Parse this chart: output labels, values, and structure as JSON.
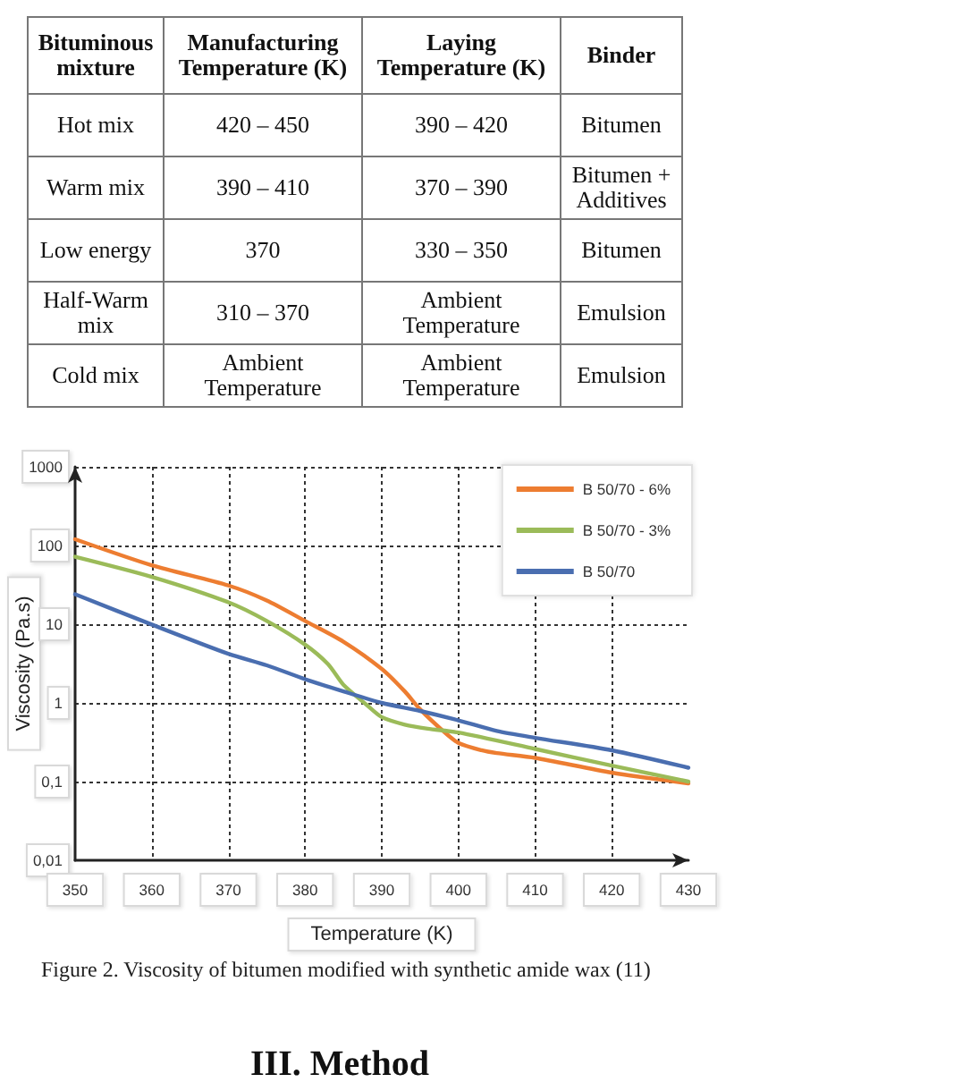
{
  "chart_data": [
    {
      "type": "other",
      "categories": [
        "Bituminous mixture",
        "Manufacturing Temperature (K)",
        "Laying Temperature (K)",
        "Binder"
      ],
      "annotations": [
        "Hot mix",
        "420 – 450",
        "390 – 420",
        "Bitumen",
        "Warm mix",
        "390 – 410",
        "370 – 390",
        "Bitumen + Additives",
        "Low energy",
        "370",
        "330 – 350",
        "Bitumen",
        "Half-Warm mix",
        "310 – 370",
        "Ambient Temperature",
        "Emulsion",
        "Cold mix",
        "Ambient Temperature",
        "Ambient Temperature",
        "Emulsion"
      ]
    },
    {
      "type": "line",
      "xlabel": "Temperature (K)",
      "ylabel": "Viscosity (Pa.s)",
      "series": [
        {
          "name": "B 50/70 - 6%",
          "color": "#ed7d31",
          "x": [
            350,
            360,
            370,
            375,
            380,
            385,
            390,
            393,
            395,
            398,
            400,
            403,
            405,
            410,
            420,
            430
          ],
          "values": [
            120,
            56,
            31,
            20,
            11,
            6.0,
            2.7,
            1.4,
            0.83,
            0.44,
            0.31,
            0.25,
            0.23,
            0.2,
            0.13,
            0.095
          ]
        },
        {
          "name": "B 50/70 - 3%",
          "color": "#9bbb59",
          "x": [
            350,
            360,
            370,
            375,
            380,
            383,
            385,
            388,
            390,
            393,
            396,
            400,
            410,
            420,
            430
          ],
          "values": [
            72,
            40,
            19,
            11,
            5.5,
            3.1,
            1.7,
            0.95,
            0.66,
            0.53,
            0.47,
            0.42,
            0.26,
            0.16,
            0.1
          ]
        },
        {
          "name": "B 50/70",
          "color": "#4a6eb0",
          "x": [
            350,
            360,
            370,
            375,
            380,
            385,
            390,
            395,
            400,
            405,
            410,
            420,
            430
          ],
          "values": [
            24,
            9.9,
            4.2,
            3.0,
            2.0,
            1.4,
            1,
            0.79,
            0.6,
            0.44,
            0.36,
            0.25,
            0.15
          ]
        }
      ],
      "xlim": [
        350,
        430
      ],
      "xticks": [
        350,
        360,
        370,
        380,
        390,
        400,
        410,
        420,
        430
      ],
      "ylim": [
        0.01,
        1000
      ],
      "yticks": [
        {
          "value": 0.01,
          "label": "0,01"
        },
        {
          "value": 0.1,
          "label": "0,1"
        },
        1,
        10,
        100,
        1000
      ],
      "log": "y",
      "grid": true,
      "legend": "top right",
      "marker": "none",
      "line_style": "solid",
      "annotations": [
        "Figure 2. Viscosity of bitumen modified with synthetic amide wax (11)"
      ]
    },
    {
      "type": "other",
      "title": "III. Method"
    }
  ]
}
